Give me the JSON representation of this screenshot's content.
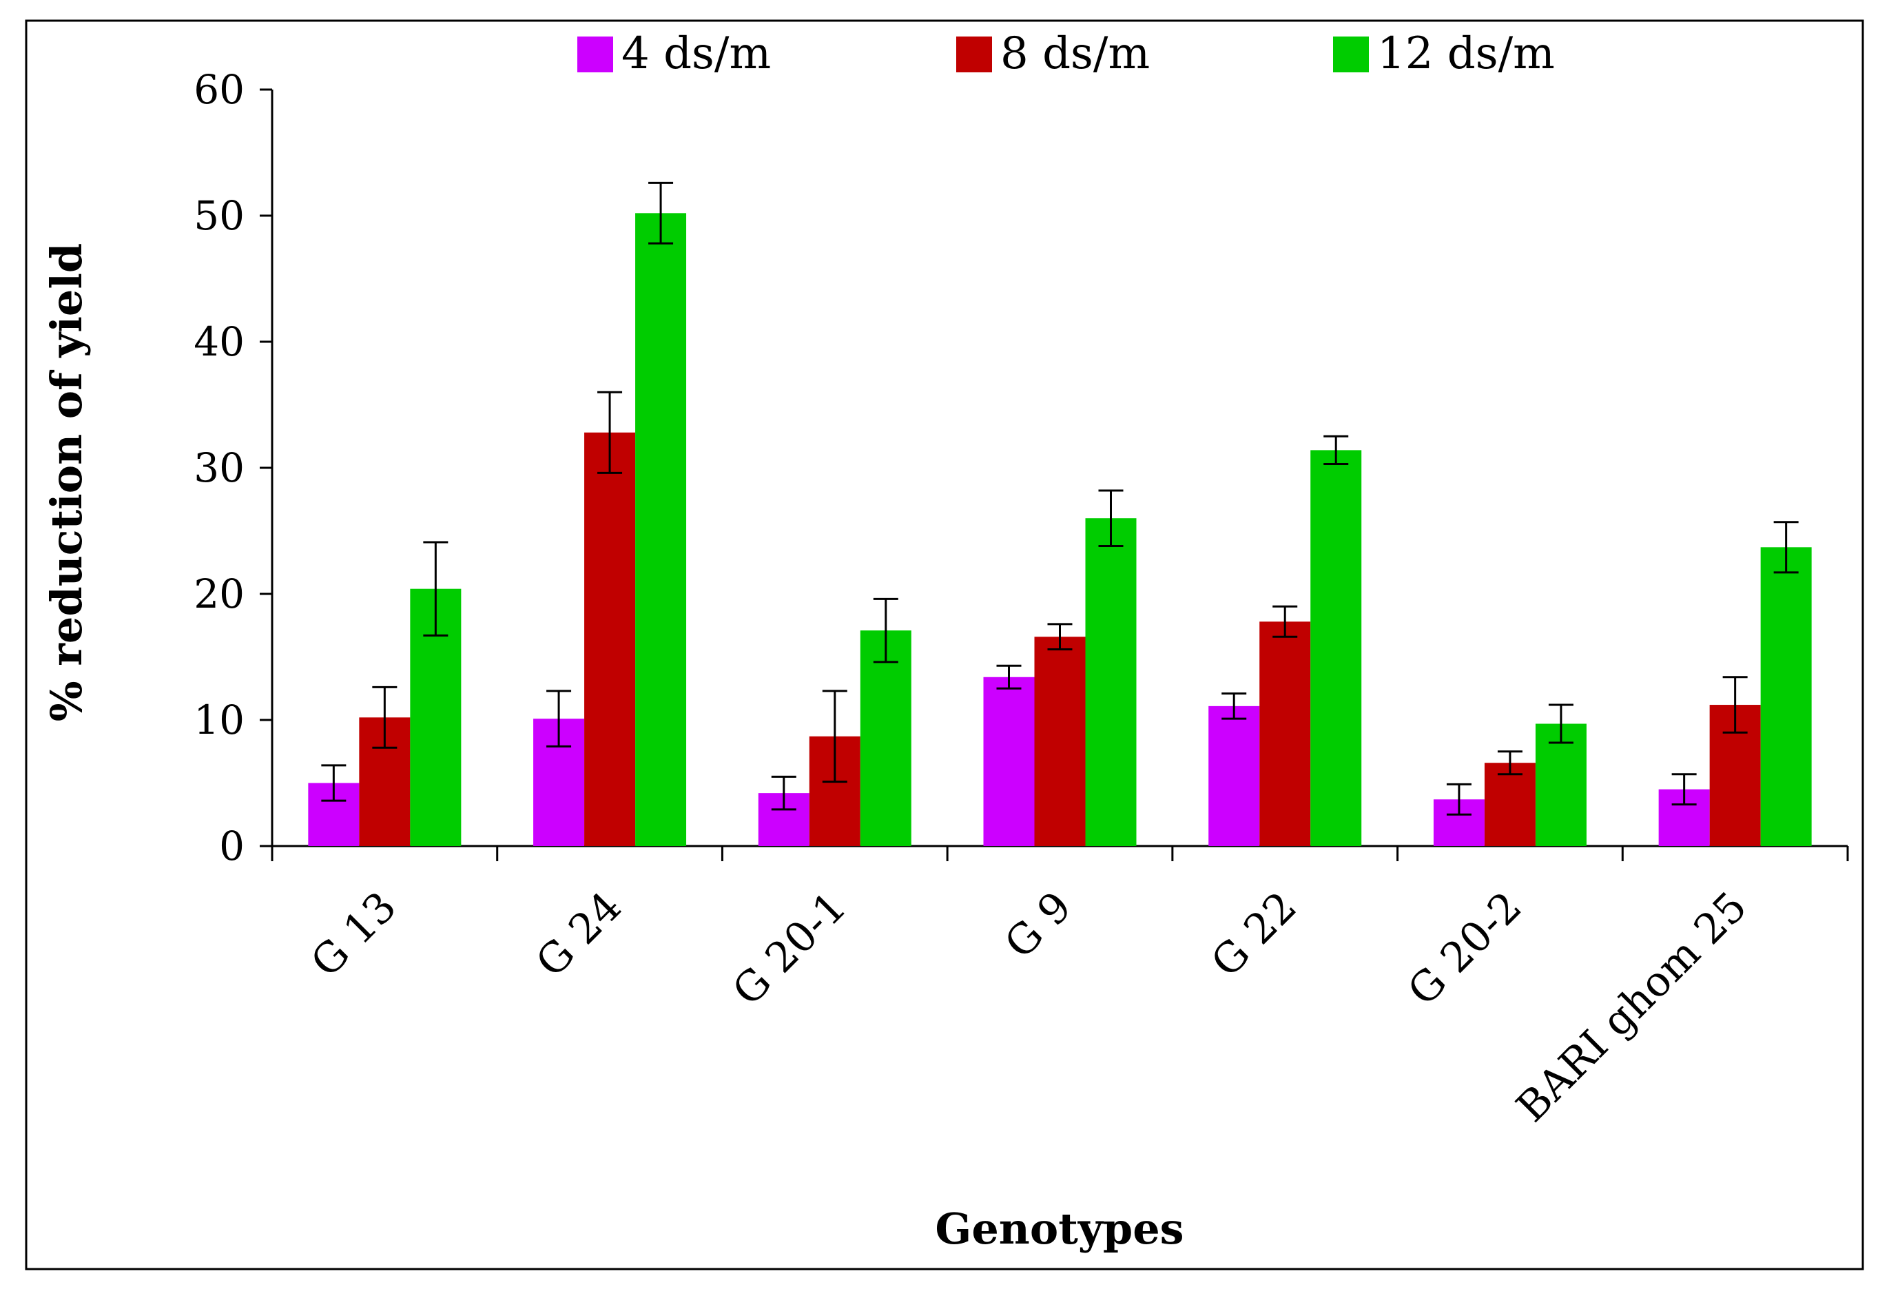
{
  "chart_data": {
    "type": "bar",
    "title": "",
    "xlabel": "Genotypes",
    "ylabel": "% reduction of yield",
    "ylim": [
      0,
      60
    ],
    "yticks": [
      0,
      10,
      20,
      30,
      40,
      50,
      60
    ],
    "categories": [
      "G 13",
      "G 24",
      "G 20-1",
      "G 9",
      "G 22",
      "G 20-2",
      "BARI ghom 25"
    ],
    "series": [
      {
        "name": "4 ds/m",
        "color": "#cc00ff",
        "values": [
          5.0,
          10.1,
          4.2,
          13.4,
          11.1,
          3.7,
          4.5
        ],
        "errors": [
          1.4,
          2.2,
          1.3,
          0.9,
          1.0,
          1.2,
          1.2
        ]
      },
      {
        "name": "8 ds/m",
        "color": "#c00000",
        "values": [
          10.2,
          32.8,
          8.7,
          16.6,
          17.8,
          6.6,
          11.2
        ],
        "errors": [
          2.4,
          3.2,
          3.6,
          1.0,
          1.2,
          0.9,
          2.2
        ]
      },
      {
        "name": "12 ds/m",
        "color": "#00cc00",
        "values": [
          20.4,
          50.2,
          17.1,
          26.0,
          31.4,
          9.7,
          23.7
        ],
        "errors": [
          3.7,
          2.4,
          2.5,
          2.2,
          1.1,
          1.5,
          2.0
        ]
      }
    ],
    "legend_position": "top"
  }
}
